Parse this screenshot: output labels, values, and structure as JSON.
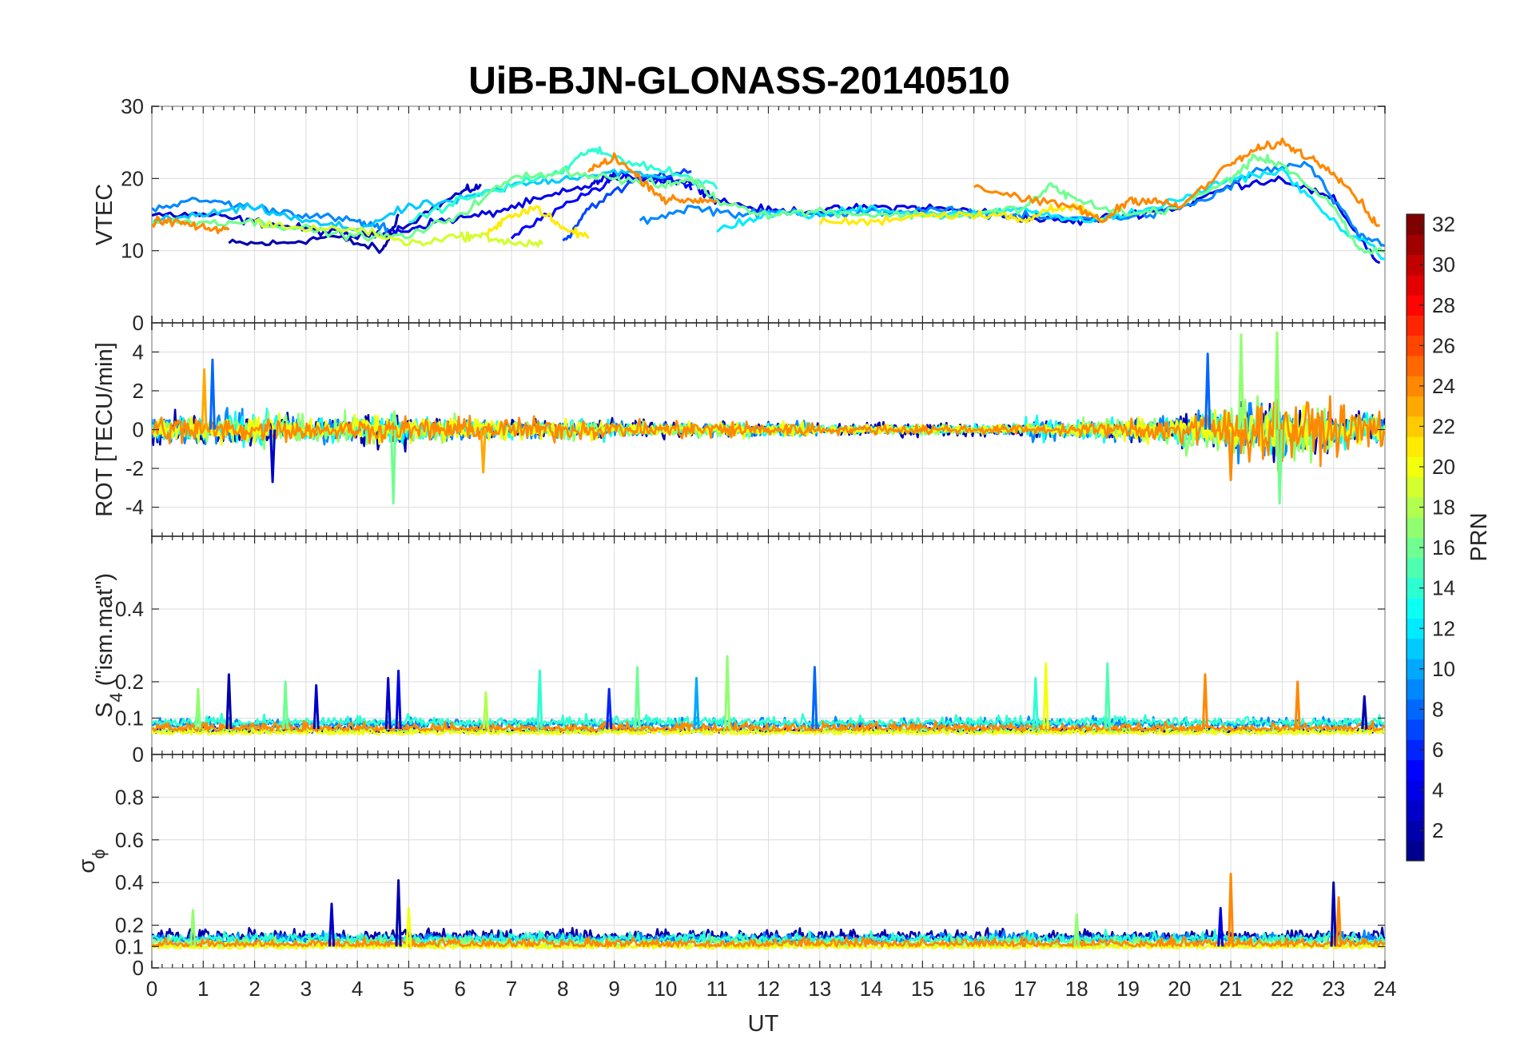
{
  "chart_data": {
    "type": "line",
    "title": "UiB-BJN-GLONASS-20140510",
    "xlabel": "UT",
    "xlim": [
      0,
      24
    ],
    "xticks": [
      "0",
      "1",
      "2",
      "3",
      "4",
      "5",
      "6",
      "7",
      "8",
      "9",
      "10",
      "11",
      "12",
      "13",
      "14",
      "15",
      "16",
      "17",
      "18",
      "19",
      "20",
      "21",
      "22",
      "23",
      "24"
    ],
    "colorbar": {
      "label": "PRN",
      "colormap": "jet",
      "range": [
        1,
        32
      ],
      "ticks": [
        "2",
        "4",
        "6",
        "8",
        "10",
        "12",
        "14",
        "16",
        "18",
        "20",
        "22",
        "24",
        "26",
        "28",
        "30",
        "32"
      ],
      "colors": [
        "#00008f",
        "#0000ff",
        "#0080ff",
        "#00ffff",
        "#80ff80",
        "#ffff00",
        "#ff8000",
        "#ff0000",
        "#800000"
      ]
    },
    "panels": [
      {
        "ylabel": "VTEC",
        "ylim": [
          0,
          30
        ],
        "yticks": [
          "0",
          "10",
          "20",
          "30"
        ],
        "series": [
          {
            "prn": 2,
            "x": [
              1.5,
              2.5,
              3.5,
              4.5,
              4.8
            ],
            "y": [
              11,
              11,
              12,
              10,
              15
            ]
          },
          {
            "prn": 3,
            "x": [
              0,
              1,
              2,
              3,
              4,
              4.8,
              6,
              6.4
            ],
            "y": [
              15,
              15,
              14,
              13,
              12,
              13,
              18,
              19
            ]
          },
          {
            "prn": 4,
            "x": [
              4.5,
              5.5,
              6.5,
              7.5,
              8.5,
              9,
              9.5,
              10.5,
              11,
              12,
              13,
              14,
              15,
              16,
              17,
              18,
              19,
              20,
              21,
              22,
              23,
              23.9
            ],
            "y": [
              12,
              14,
              15,
              17,
              19,
              20.5,
              20,
              19.5,
              17,
              15.5,
              15.5,
              16,
              16,
              15.5,
              14.5,
              14,
              15,
              16,
              19,
              20,
              17,
              8
            ]
          },
          {
            "prn": 5,
            "x": [
              7,
              8,
              9,
              10,
              10.5
            ],
            "y": [
              12,
              16,
              20,
              20,
              19
            ]
          },
          {
            "prn": 7,
            "x": [
              8,
              8.5,
              9.5,
              10.5
            ],
            "y": [
              11,
              16,
              20,
              21
            ]
          },
          {
            "prn": 9,
            "x": [
              0,
              1,
              2,
              3,
              4,
              4.6
            ],
            "y": [
              16,
              17,
              16,
              15,
              14,
              13
            ]
          },
          {
            "prn": 9,
            "x": [
              9.5,
              10.5,
              11.5,
              12.5,
              13.5,
              14.5,
              15.5,
              16.5,
              17.5,
              18.5,
              19.5,
              20.5,
              21.5,
              22.5,
              23.5,
              24
            ],
            "y": [
              14,
              16,
              15,
              15.5,
              15,
              15.5,
              15.5,
              15,
              14.5,
              14.5,
              15,
              17,
              21,
              22,
              12,
              11
            ]
          },
          {
            "prn": 11,
            "x": [
              0,
              1,
              2,
              3,
              4,
              5,
              6,
              7,
              8,
              9,
              10
            ],
            "y": [
              14,
              15,
              16,
              14,
              13,
              16,
              17,
              19,
              20,
              21,
              20
            ]
          },
          {
            "prn": 12,
            "x": [
              11,
              12,
              13,
              14,
              15,
              16,
              17,
              18,
              19,
              20,
              21,
              22,
              23,
              24
            ],
            "y": [
              13,
              15,
              15,
              16,
              15,
              15,
              16,
              14,
              15,
              17,
              20,
              21,
              14,
              9
            ]
          },
          {
            "prn": 14,
            "x": [
              5,
              6,
              7,
              8,
              8.5,
              9,
              10,
              11
            ],
            "y": [
              14,
              17,
              19,
              21,
              24,
              23,
              21,
              19
            ]
          },
          {
            "prn": 16,
            "x": [
              0,
              1,
              2,
              3,
              4,
              5,
              6,
              7,
              8,
              9,
              10,
              10.5,
              11,
              12,
              13,
              14,
              15,
              16,
              17,
              17.5,
              18,
              19,
              20,
              21,
              21.5,
              22,
              23,
              23.5,
              24
            ],
            "y": [
              14,
              14,
              14,
              13,
              12,
              12,
              15,
              20,
              21,
              20,
              19,
              20,
              17,
              15,
              15.5,
              15,
              15,
              15,
              16,
              19,
              17,
              15,
              16,
              20,
              23,
              22,
              16,
              10,
              10
            ]
          },
          {
            "prn": 19,
            "x": [
              2,
              3,
              4,
              5,
              6,
              6.5,
              7,
              7.6
            ],
            "y": [
              14,
              13,
              13,
              11,
              12,
              12,
              11,
              11
            ]
          },
          {
            "prn": 21,
            "x": [
              6.5,
              7,
              7.5,
              8,
              8.5
            ],
            "y": [
              12,
              15,
              16,
              13,
              12
            ]
          },
          {
            "prn": 21,
            "x": [
              13,
              14,
              15,
              16,
              16.5,
              17,
              17.5,
              18,
              18.5
            ],
            "y": [
              14,
              14,
              15,
              15,
              15,
              14,
              16,
              16,
              14
            ]
          },
          {
            "prn": 24,
            "x": [
              0,
              0.5,
              1,
              1.5
            ],
            "y": [
              14,
              14,
              13,
              13
            ]
          },
          {
            "prn": 24,
            "x": [
              8.5,
              9,
              9.5,
              10,
              10.5,
              11
            ],
            "y": [
              21,
              23,
              20,
              17,
              17,
              17
            ]
          },
          {
            "prn": 24,
            "x": [
              16,
              17,
              18,
              18.5,
              19,
              19.5,
              20,
              21,
              21.5,
              22,
              22.5,
              23,
              23.5,
              23.9
            ],
            "y": [
              19,
              17,
              16,
              14,
              17,
              17,
              16,
              22,
              24,
              25,
              23,
              21,
              17,
              13
            ]
          }
        ]
      },
      {
        "ylabel": "ROT [TECU/min]",
        "ylim": [
          -5.5,
          5.5
        ],
        "yticks": [
          "-4",
          "-2",
          "0",
          "2",
          "4"
        ],
        "series": [
          {
            "prn": 2,
            "baseline": 0,
            "noise": [
              0.7,
              0.7,
              0.6,
              0.5,
              0.8,
              0.6,
              0.5,
              0.4,
              0.4,
              0.4,
              0.3,
              0.3,
              0.3,
              0.3,
              0.3,
              0.3,
              0.3,
              0.3,
              0.4,
              0.5,
              0.8,
              1.2,
              1.0,
              0.8,
              0.6
            ]
          },
          {
            "prn": 9,
            "baseline": 0,
            "noise": [
              0.6,
              0.8,
              0.6,
              0.6,
              0.6,
              0.5,
              0.5,
              0.4,
              0.4,
              0.3,
              0.3,
              0.3,
              0.3,
              0.2,
              0.2,
              0.2,
              0.2,
              0.5,
              0.5,
              0.6,
              0.9,
              1.3,
              1.0,
              0.8,
              0.6
            ]
          },
          {
            "prn": 13,
            "baseline": 0,
            "noise": [
              0.5,
              0.6,
              0.7,
              0.6,
              0.6,
              0.5,
              0.4,
              0.4,
              0.4,
              0.3,
              0.3,
              0.3,
              0.3,
              0.2,
              0.2,
              0.2,
              0.2,
              0.6,
              0.5,
              0.5,
              0.8,
              1.0,
              1.0,
              0.7,
              0.5
            ]
          },
          {
            "prn": 17,
            "baseline": 0,
            "noise": [
              0.5,
              0.6,
              0.8,
              0.6,
              0.7,
              0.5,
              0.4,
              0.4,
              0.4,
              0.3,
              0.3,
              0.3,
              0.3,
              0.2,
              0.2,
              0.2,
              0.2,
              0.3,
              0.5,
              0.6,
              0.9,
              1.4,
              1.4,
              0.8,
              0.5
            ]
          },
          {
            "prn": 20,
            "baseline": 0,
            "noise": [
              0.5,
              0.5,
              0.6,
              0.5,
              0.6,
              0.6,
              0.5,
              0.4,
              0.4,
              0.3,
              0.3,
              0.3,
              0.3,
              0.2,
              0.2,
              0.2,
              0.2,
              0.3,
              0.4,
              0.5,
              0.8,
              1.0,
              0.9,
              0.7,
              0.5
            ]
          },
          {
            "prn": 24,
            "baseline": 0,
            "noise": [
              0.7,
              0.5,
              0.5,
              0.4,
              0.5,
              0.5,
              0.5,
              0.5,
              0.4,
              0.4,
              0.4,
              0.4,
              0.3,
              0.2,
              0.2,
              0.2,
              0.2,
              0.2,
              0.3,
              0.5,
              0.9,
              1.4,
              1.3,
              1.0,
              0.8
            ]
          }
        ],
        "spikes": [
          {
            "prn": 8,
            "x": 1.18,
            "y": 3.6
          },
          {
            "prn": 23,
            "x": 1.02,
            "y": 3.1
          },
          {
            "prn": 3,
            "x": 2.35,
            "y": -2.7
          },
          {
            "prn": 16,
            "x": 4.7,
            "y": -3.8
          },
          {
            "prn": 23,
            "x": 6.45,
            "y": -2.2
          },
          {
            "prn": 8,
            "x": 20.55,
            "y": 3.9
          },
          {
            "prn": 17,
            "x": 21.2,
            "y": 4.9
          },
          {
            "prn": 17,
            "x": 21.9,
            "y": 5.0
          },
          {
            "prn": 16,
            "x": 21.95,
            "y": -3.8
          },
          {
            "prn": 24,
            "x": 21.0,
            "y": -2.6
          }
        ]
      },
      {
        "ylabel": "S_4 (\"ism.mat\")",
        "ylim": [
          0,
          0.6
        ],
        "yticks": [
          "0",
          "0.1",
          "0.2",
          "0.4"
        ],
        "series": [
          {
            "prn": 2,
            "baseline": 0.06,
            "noise": 0.015
          },
          {
            "prn": 9,
            "baseline": 0.075,
            "noise": 0.02
          },
          {
            "prn": 14,
            "baseline": 0.08,
            "noise": 0.02
          },
          {
            "prn": 17,
            "baseline": 0.06,
            "noise": 0.015
          },
          {
            "prn": 20,
            "baseline": 0.055,
            "noise": 0.012
          },
          {
            "prn": 24,
            "baseline": 0.065,
            "noise": 0.018
          }
        ],
        "spikes": [
          {
            "prn": 2,
            "x": 1.5,
            "y": 0.22
          },
          {
            "prn": 17,
            "x": 0.9,
            "y": 0.18
          },
          {
            "prn": 16,
            "x": 2.6,
            "y": 0.2
          },
          {
            "prn": 3,
            "x": 3.2,
            "y": 0.19
          },
          {
            "prn": 4,
            "x": 4.8,
            "y": 0.23
          },
          {
            "prn": 3,
            "x": 4.6,
            "y": 0.21
          },
          {
            "prn": 18,
            "x": 6.5,
            "y": 0.17
          },
          {
            "prn": 14,
            "x": 7.55,
            "y": 0.23
          },
          {
            "prn": 6,
            "x": 8.9,
            "y": 0.18
          },
          {
            "prn": 16,
            "x": 9.45,
            "y": 0.24
          },
          {
            "prn": 10,
            "x": 10.6,
            "y": 0.21
          },
          {
            "prn": 17,
            "x": 11.2,
            "y": 0.27
          },
          {
            "prn": 8,
            "x": 12.9,
            "y": 0.24
          },
          {
            "prn": 14,
            "x": 17.2,
            "y": 0.21
          },
          {
            "prn": 20,
            "x": 17.4,
            "y": 0.25
          },
          {
            "prn": 15,
            "x": 18.6,
            "y": 0.25
          },
          {
            "prn": 24,
            "x": 20.5,
            "y": 0.22
          },
          {
            "prn": 24,
            "x": 22.3,
            "y": 0.2
          },
          {
            "prn": 2,
            "x": 23.6,
            "y": 0.16
          }
        ]
      },
      {
        "ylabel": "σ_ϕ",
        "ylim": [
          0,
          1
        ],
        "yticks": [
          "0",
          "0.1",
          "0.2",
          "0.4",
          "0.6",
          "0.8"
        ],
        "series": [
          {
            "prn": 2,
            "baseline": 0.13,
            "noise": 0.04
          },
          {
            "prn": 9,
            "baseline": 0.12,
            "noise": 0.035
          },
          {
            "prn": 14,
            "baseline": 0.12,
            "noise": 0.035
          },
          {
            "prn": 17,
            "baseline": 0.1,
            "noise": 0.03
          },
          {
            "prn": 20,
            "baseline": 0.09,
            "noise": 0.02
          },
          {
            "prn": 24,
            "baseline": 0.1,
            "noise": 0.03
          }
        ],
        "spikes": [
          {
            "prn": 2,
            "x": 4.8,
            "y": 0.41
          },
          {
            "prn": 3,
            "x": 3.5,
            "y": 0.3
          },
          {
            "prn": 20,
            "x": 5.0,
            "y": 0.28
          },
          {
            "prn": 24,
            "x": 21.0,
            "y": 0.44
          },
          {
            "prn": 2,
            "x": 23.0,
            "y": 0.4
          },
          {
            "prn": 24,
            "x": 23.1,
            "y": 0.33
          },
          {
            "prn": 17,
            "x": 0.8,
            "y": 0.27
          },
          {
            "prn": 17,
            "x": 18.0,
            "y": 0.25
          },
          {
            "prn": 4,
            "x": 20.8,
            "y": 0.28
          }
        ]
      }
    ]
  }
}
